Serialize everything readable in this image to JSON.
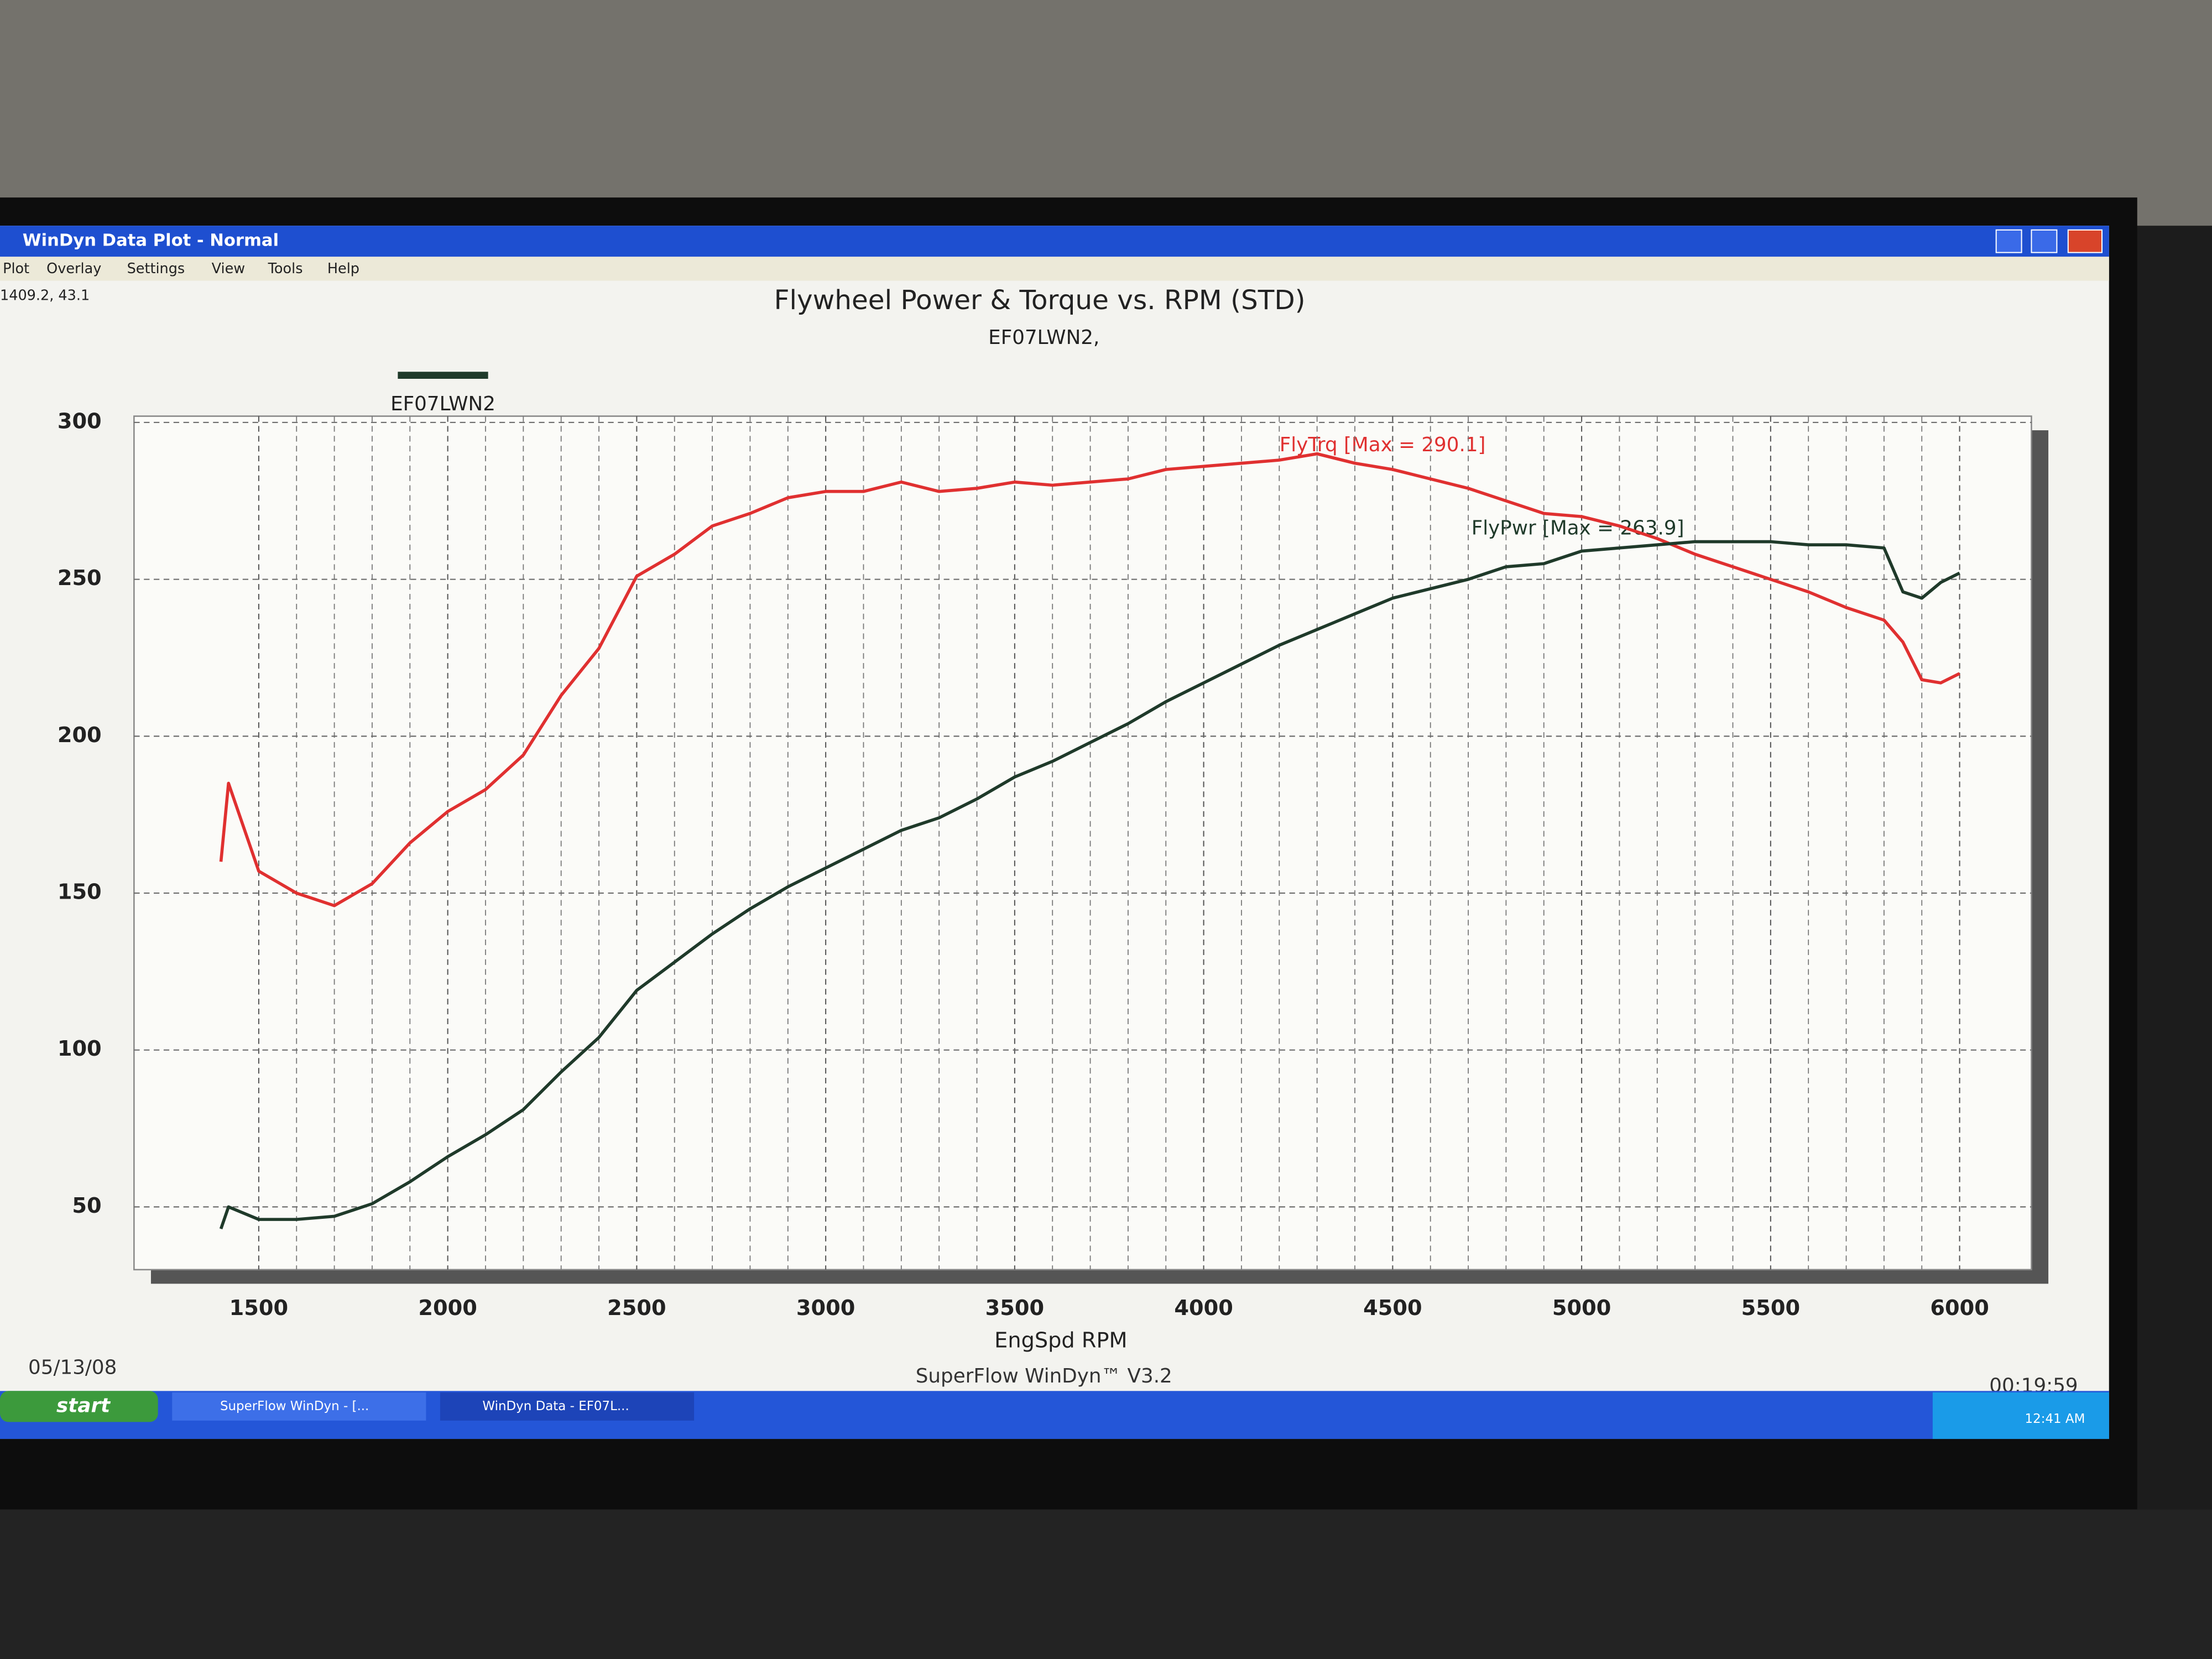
{
  "window": {
    "title": "WinDyn Data Plot - Normal",
    "menu": [
      "Plot",
      "Overlay",
      "Settings",
      "View",
      "Tools",
      "Help"
    ],
    "readout": "1409.2, 43.1"
  },
  "chart_data": {
    "type": "line",
    "title": "Flywheel Power & Torque vs. RPM (STD)",
    "subtitle": "EF07LWN2,",
    "x_label": "EngSpd RPM",
    "legend": {
      "label": "EF07LWN2",
      "color": "#1f3a2a"
    },
    "x": [
      1400,
      1420,
      1500,
      1600,
      1700,
      1800,
      1900,
      2000,
      2100,
      2200,
      2300,
      2400,
      2500,
      2600,
      2700,
      2800,
      2900,
      3000,
      3100,
      3200,
      3300,
      3400,
      3500,
      3600,
      3700,
      3800,
      3900,
      4000,
      4100,
      4200,
      4300,
      4400,
      4500,
      4600,
      4700,
      4800,
      4900,
      5000,
      5100,
      5200,
      5300,
      5400,
      5500,
      5600,
      5700,
      5800,
      5850,
      5900,
      5950,
      6000
    ],
    "series": [
      {
        "color": "#e03030",
        "values": [
          160,
          185,
          157,
          150,
          146,
          153,
          166,
          176,
          183,
          194,
          213,
          228,
          251,
          258,
          267,
          271,
          276,
          278,
          278,
          281,
          278,
          279,
          281,
          280,
          281,
          282,
          285,
          286,
          287,
          288,
          290,
          287,
          285,
          282,
          279,
          275,
          271,
          270,
          267,
          263,
          258,
          254,
          250,
          246,
          241,
          237,
          230,
          218,
          217,
          220
        ]
      },
      {
        "color": "#1f3a2a",
        "values": [
          43,
          50,
          46,
          46,
          47,
          51,
          58,
          66,
          73,
          81,
          93,
          104,
          119,
          128,
          137,
          145,
          152,
          158,
          164,
          170,
          174,
          180,
          187,
          192,
          198,
          204,
          211,
          217,
          223,
          229,
          234,
          239,
          244,
          247,
          250,
          254,
          255,
          259,
          260,
          261,
          262,
          262,
          262,
          261,
          261,
          260,
          246,
          244,
          249,
          252
        ]
      }
    ],
    "annotations": [
      {
        "text": "FlyTrq [Max = 290.1]",
        "color": "#e03030"
      },
      {
        "text": "FlyPwr [Max = 263.9]",
        "color": "#1f3a2a"
      }
    ],
    "xlim": [
      1170,
      6190
    ],
    "xticks": [
      1500,
      2000,
      2500,
      3000,
      3500,
      4000,
      4500,
      5000,
      5500,
      6000
    ],
    "ylim": [
      30,
      302
    ],
    "yticks": [
      50,
      100,
      150,
      200,
      250,
      300
    ],
    "grid": true,
    "footer": {
      "date": "05/13/08",
      "software": "SuperFlow WinDyn™ V3.2",
      "time": "00:19:59"
    }
  },
  "taskbar": {
    "start": "start",
    "tasks": [
      "SuperFlow WinDyn - [...",
      "WinDyn Data - EF07L..."
    ],
    "clock": "12:41 AM"
  }
}
